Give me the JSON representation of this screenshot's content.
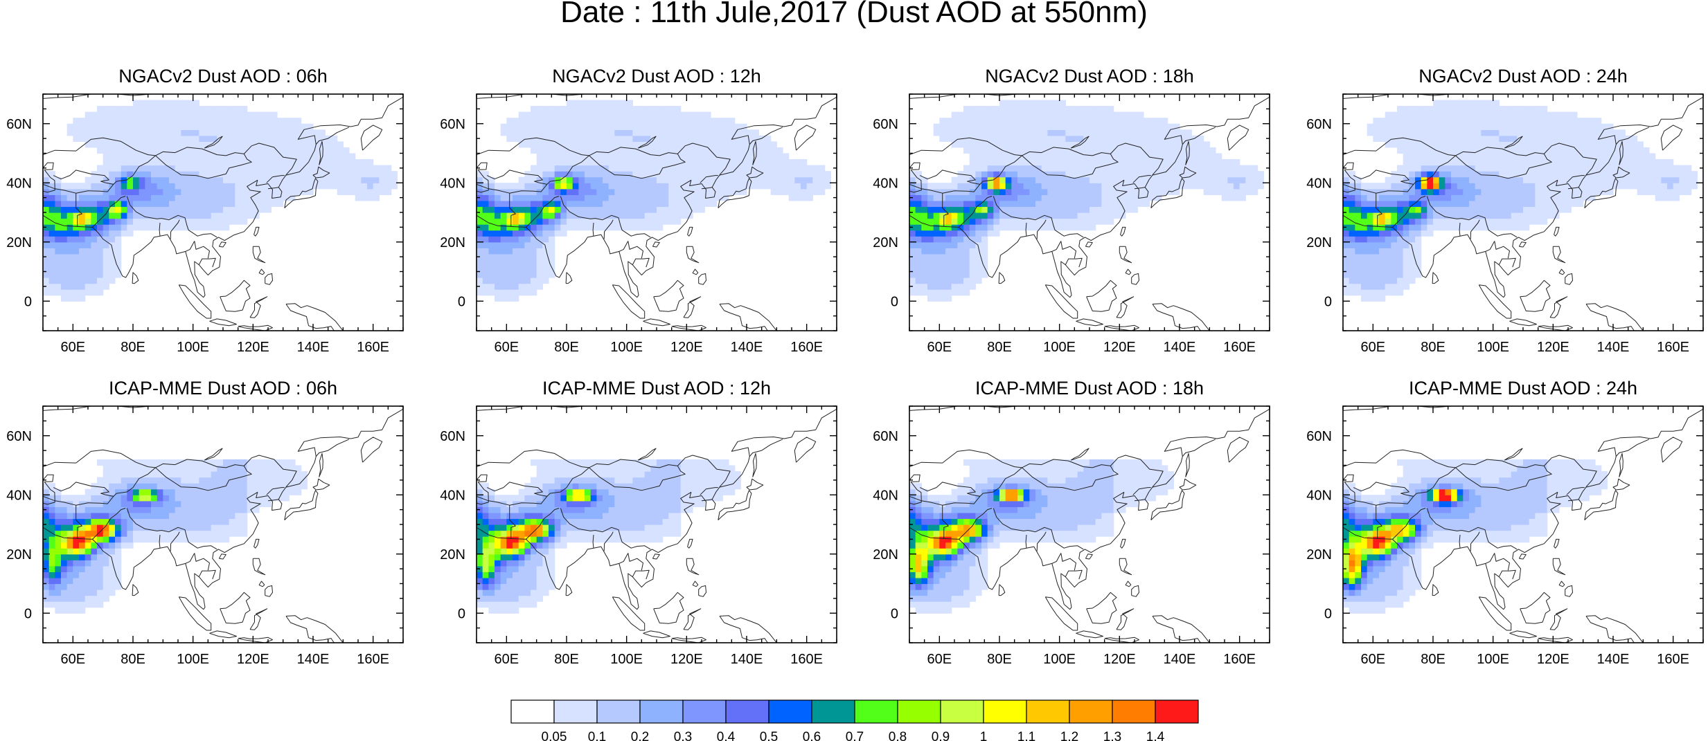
{
  "title": "Date : 11th Jule,2017 (Dust AOD at 550nm)",
  "panels": [
    {
      "title": "NGACv2 Dust AOD : 06h",
      "model": "ngac",
      "hour": 6
    },
    {
      "title": "NGACv2 Dust AOD : 12h",
      "model": "ngac",
      "hour": 12
    },
    {
      "title": "NGACv2 Dust AOD : 18h",
      "model": "ngac",
      "hour": 18
    },
    {
      "title": "NGACv2 Dust AOD : 24h",
      "model": "ngac",
      "hour": 24
    },
    {
      "title": "ICAP-MME Dust AOD : 06h",
      "model": "icap",
      "hour": 6
    },
    {
      "title": "ICAP-MME Dust AOD : 12h",
      "model": "icap",
      "hour": 12
    },
    {
      "title": "ICAP-MME Dust AOD : 18h",
      "model": "icap",
      "hour": 18
    },
    {
      "title": "ICAP-MME Dust AOD : 24h",
      "model": "icap",
      "hour": 24
    }
  ],
  "map": {
    "lon_range": [
      50,
      170
    ],
    "lat_range": [
      -10,
      70
    ],
    "lon_ticks": [
      "60E",
      "80E",
      "100E",
      "120E",
      "140E",
      "160E"
    ],
    "lon_tick_values": [
      60,
      80,
      100,
      120,
      140,
      160
    ],
    "lat_ticks": [
      "60N",
      "40N",
      "20N",
      "0"
    ],
    "lat_tick_values": [
      60,
      40,
      20,
      0
    ]
  },
  "colorbar": {
    "labels": [
      "0.05",
      "0.1",
      "0.2",
      "0.3",
      "0.4",
      "0.5",
      "0.6",
      "0.7",
      "0.8",
      "0.9",
      "1",
      "1.1",
      "1.2",
      "1.3",
      "1.4"
    ],
    "colors": [
      "#ffffff",
      "#d6e2ff",
      "#b5c9ff",
      "#8fb2ff",
      "#7f96ff",
      "#6370f8",
      "#0063ff",
      "#009696",
      "#52ff18",
      "#96ff00",
      "#c8ff40",
      "#ffff00",
      "#ffc800",
      "#ffa000",
      "#ff7d00",
      "#ff1a1a"
    ]
  }
}
